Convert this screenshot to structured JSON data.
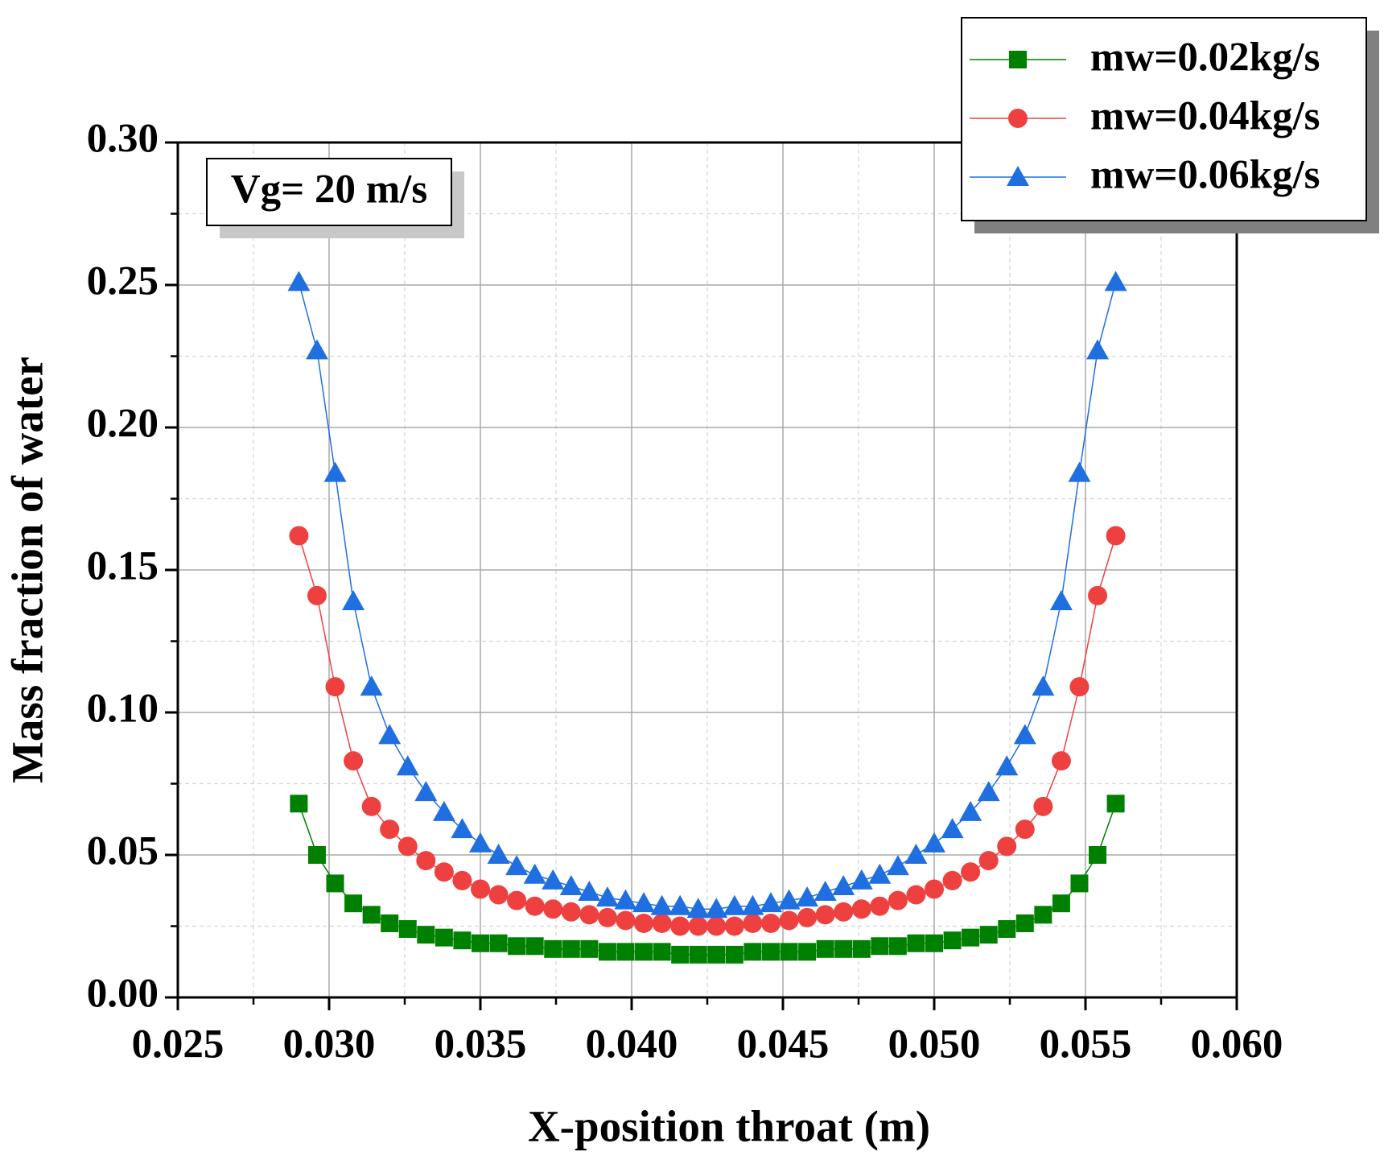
{
  "chart_data": {
    "type": "line",
    "x_label": "X-position throat (m)",
    "y_label": "Mass fraction of water",
    "annotation": "Vg= 20 m/s",
    "legend": "top-right",
    "grid": true,
    "xlim": [
      0.025,
      0.06
    ],
    "ylim": [
      0,
      0.3
    ],
    "xticks": [
      {
        "value": 0.025,
        "label": "0.025"
      },
      {
        "value": 0.03,
        "label": "0.030"
      },
      {
        "value": 0.035,
        "label": "0.035"
      },
      {
        "value": 0.04,
        "label": "0.040"
      },
      {
        "value": 0.045,
        "label": "0.045"
      },
      {
        "value": 0.05,
        "label": "0.050"
      },
      {
        "value": 0.055,
        "label": "0.055"
      },
      {
        "value": 0.06,
        "label": "0.060"
      }
    ],
    "yticks": [
      {
        "value": 0,
        "label": "0.00"
      },
      {
        "value": 0.05,
        "label": "0.05"
      },
      {
        "value": 0.1,
        "label": "0.10"
      },
      {
        "value": 0.15,
        "label": "0.15"
      },
      {
        "value": 0.2,
        "label": "0.20"
      },
      {
        "value": 0.25,
        "label": "0.25"
      },
      {
        "value": 0.3,
        "label": "0.30"
      }
    ],
    "xminorticks": [
      0.0275,
      0.0325,
      0.0375,
      0.0425,
      0.0475,
      0.0525,
      0.0575
    ],
    "yminorticks": [
      0.025,
      0.075,
      0.125,
      0.175,
      0.225,
      0.275
    ],
    "x": [
      0.029,
      0.0296,
      0.0302,
      0.0308,
      0.0314,
      0.032,
      0.0326,
      0.0332,
      0.0338,
      0.0344,
      0.035,
      0.0356,
      0.0362,
      0.0368,
      0.0374,
      0.038,
      0.0386,
      0.0392,
      0.0398,
      0.0404,
      0.041,
      0.0416,
      0.0422,
      0.0428,
      0.0434,
      0.044,
      0.0446,
      0.0452,
      0.0458,
      0.0464,
      0.047,
      0.0476,
      0.0482,
      0.0488,
      0.0494,
      0.05,
      0.0506,
      0.0512,
      0.0518,
      0.0524,
      0.053,
      0.0536,
      0.0542,
      0.0548,
      0.0554,
      0.056
    ],
    "series": [
      {
        "name": "mw=0.02kg/s",
        "color": "#008000",
        "marker": "square",
        "values": [
          0.068,
          0.05,
          0.04,
          0.033,
          0.029,
          0.026,
          0.024,
          0.022,
          0.021,
          0.02,
          0.019,
          0.019,
          0.018,
          0.018,
          0.017,
          0.017,
          0.017,
          0.016,
          0.016,
          0.016,
          0.016,
          0.015,
          0.015,
          0.015,
          0.015,
          0.016,
          0.016,
          0.016,
          0.016,
          0.017,
          0.017,
          0.017,
          0.018,
          0.018,
          0.019,
          0.019,
          0.02,
          0.021,
          0.022,
          0.024,
          0.026,
          0.029,
          0.033,
          0.04,
          0.05,
          0.068
        ]
      },
      {
        "name": "mw=0.04kg/s",
        "color": "#ef4040",
        "marker": "circle",
        "values": [
          0.162,
          0.141,
          0.109,
          0.083,
          0.067,
          0.059,
          0.053,
          0.048,
          0.044,
          0.041,
          0.038,
          0.036,
          0.034,
          0.032,
          0.031,
          0.03,
          0.029,
          0.028,
          0.027,
          0.026,
          0.026,
          0.025,
          0.025,
          0.025,
          0.025,
          0.026,
          0.026,
          0.027,
          0.028,
          0.029,
          0.03,
          0.031,
          0.032,
          0.034,
          0.036,
          0.038,
          0.041,
          0.044,
          0.048,
          0.053,
          0.059,
          0.067,
          0.083,
          0.109,
          0.141,
          0.162
        ]
      },
      {
        "name": "mw=0.06kg/s",
        "color": "#1f6fe0",
        "marker": "triangle",
        "values": [
          0.251,
          0.227,
          0.184,
          0.139,
          0.109,
          0.092,
          0.081,
          0.072,
          0.065,
          0.059,
          0.054,
          0.05,
          0.046,
          0.043,
          0.041,
          0.039,
          0.037,
          0.035,
          0.034,
          0.033,
          0.032,
          0.032,
          0.031,
          0.031,
          0.032,
          0.032,
          0.033,
          0.034,
          0.035,
          0.037,
          0.039,
          0.041,
          0.043,
          0.046,
          0.05,
          0.054,
          0.059,
          0.065,
          0.072,
          0.081,
          0.092,
          0.109,
          0.139,
          0.184,
          0.227,
          0.251
        ]
      }
    ]
  }
}
